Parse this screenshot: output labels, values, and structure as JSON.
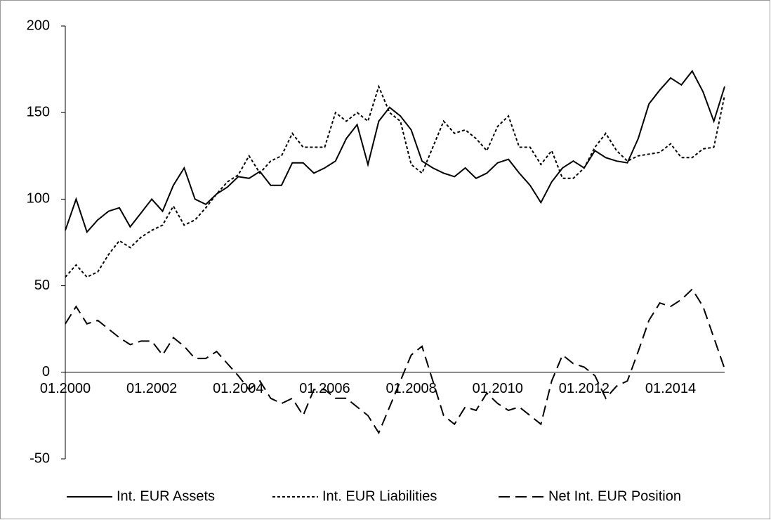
{
  "chart_data": {
    "type": "line",
    "categories": [
      "01.2000",
      null,
      null,
      null,
      null,
      null,
      null,
      null,
      "01.2002",
      null,
      null,
      null,
      null,
      null,
      null,
      null,
      "01.2004",
      null,
      null,
      null,
      null,
      null,
      null,
      null,
      "01.2006",
      null,
      null,
      null,
      null,
      null,
      null,
      null,
      "01.2008",
      null,
      null,
      null,
      null,
      null,
      null,
      null,
      "01.2010",
      null,
      null,
      null,
      null,
      null,
      null,
      null,
      "01.2012",
      null,
      null,
      null,
      null,
      null,
      null,
      null,
      "01.2014",
      null,
      null,
      null,
      null,
      null
    ],
    "series": [
      {
        "name": "Int. EUR Assets",
        "color": "#000000",
        "line_style": "solid",
        "values": [
          82,
          100,
          81,
          88,
          93,
          95,
          84,
          92,
          100,
          93,
          108,
          118,
          100,
          97,
          103,
          107,
          113,
          112,
          116,
          108,
          108,
          121,
          121,
          115,
          118,
          122,
          135,
          143,
          120,
          145,
          153,
          148,
          140,
          122,
          118,
          115,
          113,
          118,
          112,
          115,
          121,
          123,
          115,
          108,
          98,
          110,
          118,
          122,
          118,
          128,
          124,
          122,
          121,
          135,
          155,
          163,
          170,
          166,
          174,
          162,
          145,
          165
        ]
      },
      {
        "name": "Int. EUR Liabilities",
        "color": "#000000",
        "line_style": "dotted",
        "values": [
          55,
          62,
          55,
          58,
          68,
          76,
          72,
          78,
          82,
          85,
          96,
          85,
          88,
          95,
          103,
          110,
          114,
          125,
          115,
          122,
          125,
          138,
          130,
          130,
          130,
          150,
          145,
          150,
          145,
          165,
          150,
          145,
          120,
          115,
          130,
          145,
          138,
          140,
          135,
          128,
          142,
          148,
          130,
          130,
          120,
          128,
          112,
          112,
          118,
          130,
          138,
          128,
          122,
          125,
          126,
          127,
          132,
          124,
          124,
          129,
          130,
          160
        ]
      },
      {
        "name": "Net Int. EUR Position",
        "color": "#000000",
        "line_style": "dashed",
        "values": [
          28,
          38,
          28,
          30,
          25,
          20,
          16,
          18,
          18,
          10,
          20,
          15,
          8,
          8,
          12,
          5,
          -2,
          -10,
          -5,
          -15,
          -18,
          -15,
          -25,
          -10,
          -10,
          -15,
          -15,
          -20,
          -25,
          -35,
          -20,
          -5,
          10,
          15,
          -5,
          -25,
          -30,
          -20,
          -22,
          -12,
          -18,
          -22,
          -20,
          -25,
          -30,
          -5,
          10,
          5,
          3,
          -2,
          -15,
          -8,
          -5,
          12,
          30,
          40,
          38,
          42,
          48,
          38,
          20,
          2
        ]
      }
    ],
    "ylim": [
      -50,
      200
    ],
    "yticks": [
      -50,
      0,
      50,
      100,
      150,
      200
    ],
    "grid": false,
    "legend": "bottom"
  }
}
